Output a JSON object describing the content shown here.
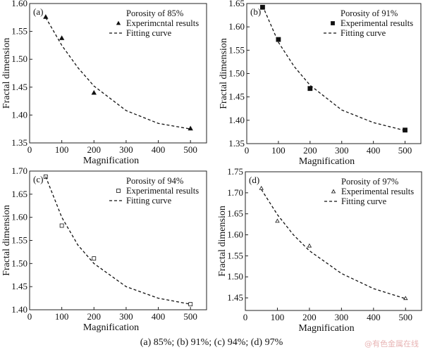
{
  "caption": "(a) 85%; (b) 91%; (c) 94%; (d) 97%",
  "watermark": "@有色金属在线",
  "chart_data": [
    {
      "type": "scatter",
      "panel_label": "(a)",
      "legend_title": "Porosity of 85%",
      "legend_markers": "Experimcntal results",
      "legend_curve": "Fitting curve",
      "marker": "filled-triangle",
      "xlabel": "Magnification",
      "ylabel": "Fractal dimension",
      "xlim": [
        0,
        550
      ],
      "ylim": [
        1.35,
        1.6
      ],
      "xticks": [
        0,
        100,
        200,
        300,
        400,
        500
      ],
      "yticks": [
        1.35,
        1.4,
        1.45,
        1.5,
        1.55,
        1.6
      ],
      "ytick_labels": [
        "1.35",
        "1.40",
        "1.45",
        "1.50",
        "1.55",
        "1.60"
      ],
      "x": [
        50,
        100,
        200,
        500
      ],
      "y": [
        1.576,
        1.538,
        1.44,
        1.376
      ],
      "fit_x": [
        50,
        100,
        150,
        200,
        300,
        400,
        500
      ],
      "fit_y": [
        1.575,
        1.525,
        1.485,
        1.452,
        1.408,
        1.385,
        1.375
      ]
    },
    {
      "type": "scatter",
      "panel_label": "(b)",
      "legend_title": "Porosity of 91%",
      "legend_markers": "Experimental results",
      "legend_curve": "Fitting curve",
      "marker": "filled-square",
      "xlabel": "Magnification",
      "ylabel": "Fractal dimension",
      "xlim": [
        0,
        550
      ],
      "ylim": [
        1.35,
        1.65
      ],
      "xticks": [
        0,
        100,
        200,
        300,
        400,
        500
      ],
      "yticks": [
        1.35,
        1.4,
        1.45,
        1.5,
        1.55,
        1.6,
        1.65
      ],
      "ytick_labels": [
        "1.35",
        "1.40",
        "1.45",
        "1.50",
        "1.55",
        "1.60",
        "1.65"
      ],
      "x": [
        50,
        100,
        200,
        500
      ],
      "y": [
        1.642,
        1.573,
        1.468,
        1.379
      ],
      "fit_x": [
        50,
        100,
        150,
        200,
        300,
        400,
        500
      ],
      "fit_y": [
        1.645,
        1.567,
        1.515,
        1.475,
        1.422,
        1.395,
        1.378
      ]
    },
    {
      "type": "scatter",
      "panel_label": "(c)",
      "legend_title": "Porosity of 94%",
      "legend_markers": "Experimental results",
      "legend_curve": "Fitting curve",
      "marker": "open-square",
      "xlabel": "Magnification",
      "ylabel": "Fractal dimension",
      "xlim": [
        0,
        550
      ],
      "ylim": [
        1.4,
        1.7
      ],
      "xticks": [
        0,
        100,
        200,
        300,
        400,
        500
      ],
      "yticks": [
        1.4,
        1.45,
        1.5,
        1.55,
        1.6,
        1.65,
        1.7
      ],
      "ytick_labels": [
        "1.40",
        "1.45",
        "1.50",
        "1.55",
        "1.60",
        "1.65",
        "1.70"
      ],
      "x": [
        50,
        100,
        200,
        500
      ],
      "y": [
        1.688,
        1.582,
        1.511,
        1.412
      ],
      "fit_x": [
        50,
        100,
        150,
        200,
        300,
        400,
        500
      ],
      "fit_y": [
        1.688,
        1.6,
        1.54,
        1.5,
        1.45,
        1.425,
        1.412
      ]
    },
    {
      "type": "scatter",
      "panel_label": "(d)",
      "legend_title": "Porosity of 97%",
      "legend_markers": "Experimental results",
      "legend_curve": "Fitting curve",
      "marker": "open-triangle",
      "xlabel": "Magnification",
      "ylabel": "Fractal dimension",
      "xlim": [
        0,
        550
      ],
      "ylim": [
        1.42,
        1.75
      ],
      "xticks": [
        0,
        100,
        200,
        300,
        400,
        500
      ],
      "yticks": [
        1.45,
        1.5,
        1.55,
        1.6,
        1.65,
        1.7,
        1.75
      ],
      "ytick_labels": [
        "1.45",
        "1.50",
        "1.55",
        "1.60",
        "1.65",
        "1.70",
        "1.75"
      ],
      "x": [
        50,
        100,
        200,
        500
      ],
      "y": [
        1.711,
        1.633,
        1.574,
        1.449
      ],
      "fit_x": [
        50,
        100,
        150,
        200,
        300,
        400,
        500
      ],
      "fit_y": [
        1.708,
        1.648,
        1.6,
        1.562,
        1.508,
        1.472,
        1.448
      ]
    }
  ]
}
